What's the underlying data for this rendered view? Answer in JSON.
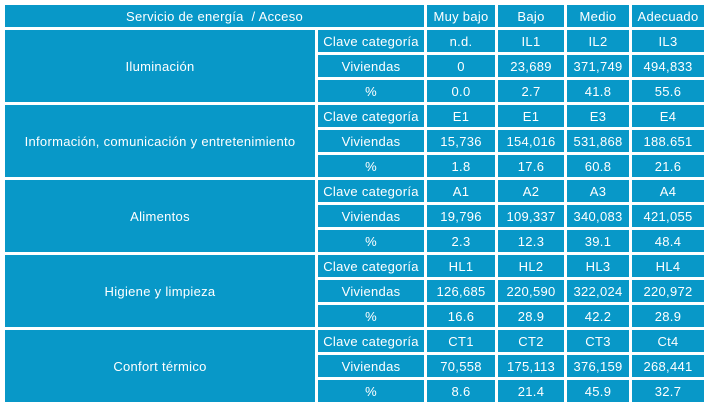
{
  "colors": {
    "cell_bg": "#0898C8",
    "grid": "#FFFFFF",
    "text": "#FFFFFF"
  },
  "chart_data": {
    "type": "table",
    "title": "Servicio de energía  / Acceso",
    "column_headers": [
      "Muy bajo",
      "Bajo",
      "Medio",
      "Adecuado"
    ],
    "row_metric_labels": [
      "Clave categoría",
      "Viviendas",
      "%"
    ],
    "groups": [
      {
        "service": "Iluminación",
        "clave_categoria": [
          "n.d.",
          "IL1",
          "IL2",
          "IL3"
        ],
        "viviendas": [
          "0",
          "23,689",
          "371,749",
          "494,833"
        ],
        "porcentaje": [
          "0.0",
          "2.7",
          "41.8",
          "55.6"
        ]
      },
      {
        "service": "Información, comunicación y entretenimiento",
        "clave_categoria": [
          "E1",
          "E1",
          "E3",
          "E4"
        ],
        "viviendas": [
          "15,736",
          "154,016",
          "531,868",
          "188.651"
        ],
        "porcentaje": [
          "1.8",
          "17.6",
          "60.8",
          "21.6"
        ]
      },
      {
        "service": "Alimentos",
        "clave_categoria": [
          "A1",
          "A2",
          "A3",
          "A4"
        ],
        "viviendas": [
          "19,796",
          "109,337",
          "340,083",
          "421,055"
        ],
        "porcentaje": [
          "2.3",
          "12.3",
          "39.1",
          "48.4"
        ]
      },
      {
        "service": "Higiene y limpieza",
        "clave_categoria": [
          "HL1",
          "HL2",
          "HL3",
          "HL4"
        ],
        "viviendas": [
          "126,685",
          "220,590",
          "322,024",
          "220,972"
        ],
        "porcentaje": [
          "16.6",
          "28.9",
          "42.2",
          "28.9"
        ]
      },
      {
        "service": "Confort térmico",
        "clave_categoria": [
          "CT1",
          "CT2",
          "CT3",
          "Ct4"
        ],
        "viviendas": [
          "70,558",
          "175,113",
          "376,159",
          "268,441"
        ],
        "porcentaje": [
          "8.6",
          "21.4",
          "45.9",
          "32.7"
        ]
      }
    ]
  }
}
